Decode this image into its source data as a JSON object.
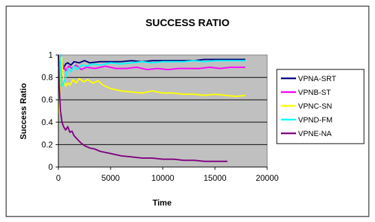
{
  "chart_data": {
    "type": "line",
    "title": "SUCCESS RATIO",
    "xlabel": "Time",
    "ylabel": "Success Ratio",
    "xlim": [
      0,
      20000
    ],
    "ylim": [
      0,
      1
    ],
    "x_ticks": [
      "0",
      "5000",
      "10000",
      "15000",
      "20000"
    ],
    "y_ticks": [
      "0",
      "0.2",
      "0.4",
      "0.6",
      "0.8",
      "1"
    ],
    "grid": true,
    "legend_position": "right",
    "plot_background": "#c0c0c0",
    "series": [
      {
        "name": "VPNA-SRT",
        "color": "#000080",
        "x": [
          0,
          150,
          300,
          500,
          700,
          900,
          1200,
          1500,
          2000,
          2500,
          3000,
          4000,
          5000,
          6000,
          7000,
          8000,
          9000,
          10000,
          11000,
          12000,
          13000,
          14000,
          15000,
          16000,
          17000,
          17900
        ],
        "y": [
          0.98,
          1.0,
          0.95,
          0.88,
          0.92,
          0.93,
          0.91,
          0.94,
          0.93,
          0.95,
          0.93,
          0.94,
          0.94,
          0.94,
          0.95,
          0.94,
          0.95,
          0.95,
          0.95,
          0.95,
          0.95,
          0.96,
          0.96,
          0.96,
          0.96,
          0.96
        ]
      },
      {
        "name": "VPNB-ST",
        "color": "#ff00ff",
        "x": [
          0,
          150,
          300,
          500,
          700,
          1000,
          1300,
          1700,
          2200,
          2700,
          3500,
          4500,
          5500,
          6500,
          7500,
          8500,
          9500,
          10500,
          11500,
          12500,
          13500,
          14500,
          15500,
          16500,
          17500,
          17900
        ],
        "y": [
          0.9,
          1.0,
          0.93,
          0.9,
          0.86,
          0.9,
          0.88,
          0.91,
          0.87,
          0.89,
          0.88,
          0.9,
          0.88,
          0.88,
          0.89,
          0.87,
          0.88,
          0.87,
          0.88,
          0.88,
          0.88,
          0.89,
          0.88,
          0.89,
          0.89,
          0.89
        ]
      },
      {
        "name": "VPNC-SN",
        "color": "#ffff00",
        "x": [
          0,
          100,
          200,
          300,
          500,
          700,
          900,
          1100,
          1400,
          1700,
          2000,
          2400,
          2800,
          3300,
          3800,
          4300,
          5000,
          6000,
          7000,
          8000,
          9000,
          10000,
          11000,
          12000,
          13000,
          14000,
          15000,
          16000,
          17000,
          17900
        ],
        "y": [
          0.55,
          0.48,
          0.85,
          0.98,
          0.78,
          0.72,
          0.75,
          0.73,
          0.78,
          0.75,
          0.79,
          0.76,
          0.78,
          0.75,
          0.77,
          0.73,
          0.7,
          0.68,
          0.67,
          0.66,
          0.68,
          0.66,
          0.66,
          0.65,
          0.65,
          0.64,
          0.65,
          0.64,
          0.63,
          0.64
        ]
      },
      {
        "name": "VPND-FM",
        "color": "#00ffff",
        "x": [
          0,
          150,
          300,
          500,
          700,
          900,
          1200,
          1500,
          1800,
          2200,
          2700,
          3300,
          4000,
          5000,
          6000,
          7000,
          8000,
          9000,
          10000,
          11000,
          12000,
          13000,
          14000,
          15000,
          16000,
          17000,
          17900
        ],
        "y": [
          0.92,
          1.0,
          0.72,
          0.75,
          0.8,
          0.88,
          0.85,
          0.9,
          0.87,
          0.91,
          0.9,
          0.92,
          0.91,
          0.93,
          0.92,
          0.93,
          0.94,
          0.93,
          0.94,
          0.94,
          0.94,
          0.95,
          0.94,
          0.95,
          0.95,
          0.95,
          0.95
        ]
      },
      {
        "name": "VPNE-NA",
        "color": "#800080",
        "x": [
          0,
          100,
          200,
          350,
          500,
          700,
          900,
          1100,
          1300,
          1500,
          1800,
          2100,
          2500,
          3000,
          3500,
          4000,
          5000,
          6000,
          7000,
          8000,
          9000,
          10000,
          11000,
          12000,
          13000,
          14000,
          15000,
          16200
        ],
        "y": [
          1.0,
          0.7,
          0.5,
          0.4,
          0.36,
          0.33,
          0.36,
          0.31,
          0.32,
          0.28,
          0.25,
          0.22,
          0.19,
          0.17,
          0.16,
          0.14,
          0.12,
          0.1,
          0.09,
          0.08,
          0.08,
          0.07,
          0.07,
          0.06,
          0.06,
          0.05,
          0.05,
          0.05
        ]
      }
    ]
  }
}
